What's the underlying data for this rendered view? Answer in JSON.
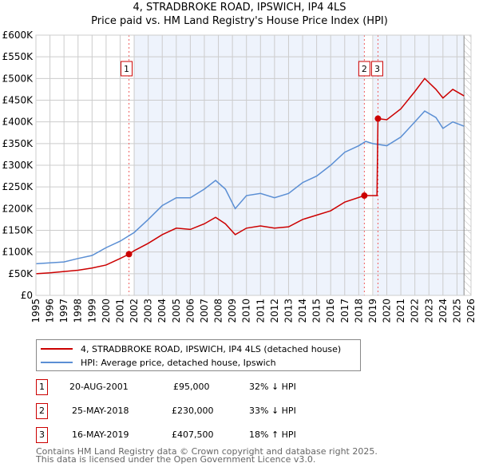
{
  "chart_data": {
    "type": "line",
    "title": "4, STRADBROKE ROAD, IPSWICH, IP4 4LS",
    "subtitle": "Price paid vs. HM Land Registry's House Price Index (HPI)",
    "xlim": [
      1995,
      2026
    ],
    "ylim": [
      0,
      600000
    ],
    "x_ticks": [
      "1995",
      "1996",
      "1997",
      "1998",
      "1999",
      "2000",
      "2001",
      "2002",
      "2003",
      "2004",
      "2005",
      "2006",
      "2007",
      "2008",
      "2009",
      "2010",
      "2011",
      "2012",
      "2013",
      "2014",
      "2015",
      "2016",
      "2017",
      "2018",
      "2019",
      "2020",
      "2021",
      "2022",
      "2023",
      "2024",
      "2025",
      "2026"
    ],
    "y_ticks": [
      {
        "v": 0,
        "label": "£0"
      },
      {
        "v": 50000,
        "label": "£50K"
      },
      {
        "v": 100000,
        "label": "£100K"
      },
      {
        "v": 150000,
        "label": "£150K"
      },
      {
        "v": 200000,
        "label": "£200K"
      },
      {
        "v": 250000,
        "label": "£250K"
      },
      {
        "v": 300000,
        "label": "£300K"
      },
      {
        "v": 350000,
        "label": "£350K"
      },
      {
        "v": 400000,
        "label": "£400K"
      },
      {
        "v": 450000,
        "label": "£450K"
      },
      {
        "v": 500000,
        "label": "£500K"
      },
      {
        "v": 550000,
        "label": "£550K"
      },
      {
        "v": 600000,
        "label": "£600K"
      }
    ],
    "grid": true,
    "series": [
      {
        "name": "4, STRADBROKE ROAD, IPSWICH, IP4 4LS (detached house)",
        "color": "#cc0000",
        "points": [
          [
            1995,
            50000
          ],
          [
            1996,
            52000
          ],
          [
            1997,
            55000
          ],
          [
            1998,
            58000
          ],
          [
            1999,
            63000
          ],
          [
            2000,
            70000
          ],
          [
            2001,
            85000
          ],
          [
            2001.63,
            95000
          ],
          [
            2002,
            103000
          ],
          [
            2003,
            120000
          ],
          [
            2004,
            140000
          ],
          [
            2005,
            155000
          ],
          [
            2006,
            152000
          ],
          [
            2007,
            165000
          ],
          [
            2007.8,
            180000
          ],
          [
            2008.5,
            165000
          ],
          [
            2009.2,
            140000
          ],
          [
            2010,
            155000
          ],
          [
            2011,
            160000
          ],
          [
            2012,
            155000
          ],
          [
            2013,
            158000
          ],
          [
            2014,
            175000
          ],
          [
            2015,
            185000
          ],
          [
            2016,
            195000
          ],
          [
            2017,
            215000
          ],
          [
            2018.4,
            230000
          ],
          [
            2019.3,
            230000
          ],
          [
            2019.37,
            407500
          ],
          [
            2020,
            405000
          ],
          [
            2021,
            430000
          ],
          [
            2022,
            470000
          ],
          [
            2022.7,
            500000
          ],
          [
            2023.5,
            475000
          ],
          [
            2024,
            455000
          ],
          [
            2024.7,
            475000
          ],
          [
            2025.5,
            460000
          ]
        ]
      },
      {
        "name": "HPI: Average price, detached house, Ipswich",
        "color": "#5b8fd4",
        "points": [
          [
            1995,
            73000
          ],
          [
            1996,
            75000
          ],
          [
            1997,
            77000
          ],
          [
            1998,
            85000
          ],
          [
            1999,
            92000
          ],
          [
            2000,
            110000
          ],
          [
            2001,
            125000
          ],
          [
            2002,
            145000
          ],
          [
            2003,
            175000
          ],
          [
            2004,
            207000
          ],
          [
            2005,
            225000
          ],
          [
            2006,
            225000
          ],
          [
            2007,
            245000
          ],
          [
            2007.8,
            265000
          ],
          [
            2008.5,
            245000
          ],
          [
            2009.2,
            200000
          ],
          [
            2010,
            230000
          ],
          [
            2011,
            235000
          ],
          [
            2012,
            225000
          ],
          [
            2013,
            235000
          ],
          [
            2014,
            260000
          ],
          [
            2015,
            275000
          ],
          [
            2016,
            300000
          ],
          [
            2017,
            330000
          ],
          [
            2018,
            345000
          ],
          [
            2018.5,
            355000
          ],
          [
            2019,
            350000
          ],
          [
            2020,
            345000
          ],
          [
            2021,
            365000
          ],
          [
            2022,
            400000
          ],
          [
            2022.7,
            425000
          ],
          [
            2023.5,
            410000
          ],
          [
            2024,
            385000
          ],
          [
            2024.7,
            400000
          ],
          [
            2025.5,
            390000
          ]
        ]
      }
    ],
    "sales": [
      {
        "label": "1",
        "x": 2001.63,
        "value": 95000
      },
      {
        "label": "2",
        "x": 2018.4,
        "value": 230000
      },
      {
        "label": "3",
        "x": 2019.37,
        "value": 407500
      }
    ],
    "legend_placement": "bottom"
  },
  "table": [
    {
      "num": "1",
      "date": "20-AUG-2001",
      "price": "£95,000",
      "hpi": "32% ↓ HPI"
    },
    {
      "num": "2",
      "date": "25-MAY-2018",
      "price": "£230,000",
      "hpi": "33% ↓ HPI"
    },
    {
      "num": "3",
      "date": "16-MAY-2019",
      "price": "£407,500",
      "hpi": "18% ↑ HPI"
    }
  ],
  "footer": {
    "line1": "Contains HM Land Registry data © Crown copyright and database right 2025.",
    "line2": "This data is licensed under the Open Government Licence v3.0."
  }
}
